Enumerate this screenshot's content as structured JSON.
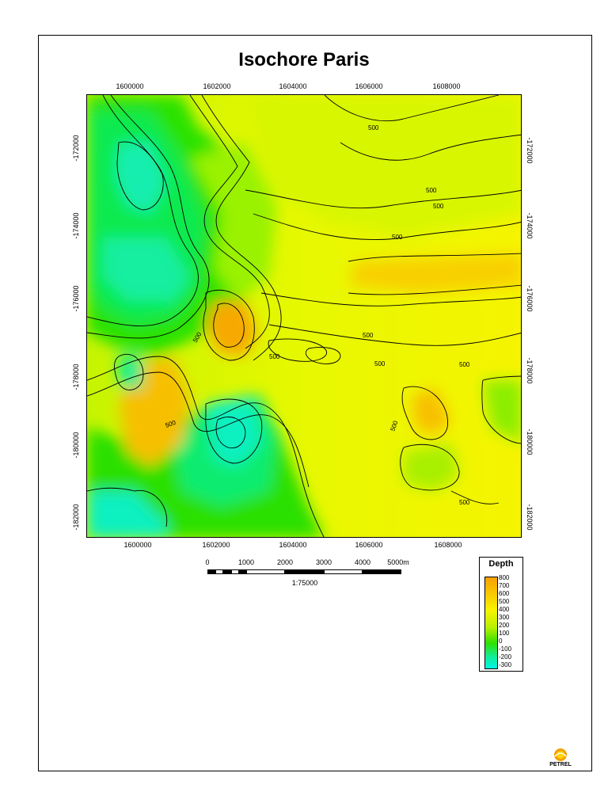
{
  "title": "Isochore Paris",
  "axes": {
    "x_ticks": [
      "1600000",
      "1602000",
      "1604000",
      "1606000",
      "1608000"
    ],
    "y_ticks": [
      "-172000",
      "-174000",
      "-176000",
      "-178000",
      "-180000",
      "-182000"
    ]
  },
  "contour_labels": [
    "500",
    "500",
    "500",
    "500",
    "500",
    "500",
    "500",
    "500",
    "500",
    "500",
    "500",
    "500"
  ],
  "scalebar": {
    "labels": [
      "0",
      "1000",
      "2000",
      "3000",
      "4000",
      "5000m"
    ],
    "ratio": "1:75000"
  },
  "legend": {
    "title": "Depth",
    "ticks": [
      "800",
      "700",
      "600",
      "500",
      "400",
      "300",
      "200",
      "100",
      "0",
      "-100",
      "-200",
      "-300"
    ]
  },
  "colors": {
    "deep": "#00f0d0",
    "green": "#26e000",
    "yellowgreen": "#c9f500",
    "yellow": "#f8f800",
    "orange": "#f8b000"
  },
  "logo": {
    "text": "PETREL",
    "icon": "petrel-logo-icon"
  }
}
